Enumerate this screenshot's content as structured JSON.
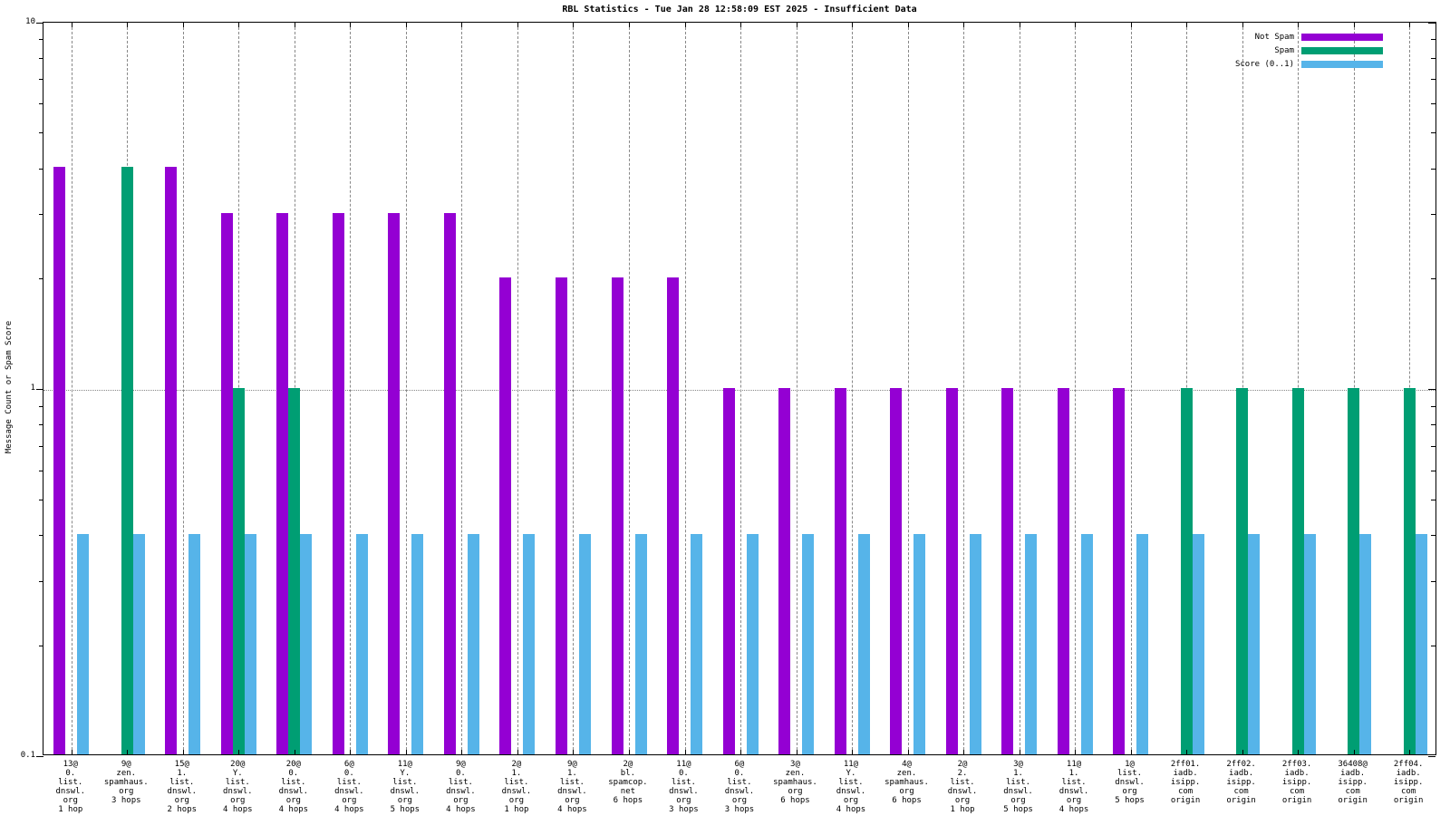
{
  "title": "RBL Statistics - Tue Jan 28 12:58:09 EST 2025 - Insufficient Data",
  "ylabel": "Message Count or Spam Score",
  "legend": [
    {
      "label": "Not Spam",
      "color": "#9400D3"
    },
    {
      "label": "Spam",
      "color": "#009E73"
    },
    {
      "label": "Score (0..1)",
      "color": "#56B4E9"
    }
  ],
  "colors": {
    "not_spam": "#9400D3",
    "spam": "#009E73",
    "score": "#56B4E9",
    "grid": "#888888",
    "border": "#000000"
  },
  "chart_data": {
    "type": "bar",
    "yscale": "log",
    "ylim": [
      0.1,
      10
    ],
    "ytick_labels": [
      "10",
      "1",
      "0.1"
    ],
    "grid": "vertical-dashed-per-category, horizontal-dotted-at-1",
    "legend_position": "top-right",
    "ylabel": "Message Count or Spam Score",
    "categories": [
      [
        "13@",
        "0.",
        "list.",
        "dnswl.",
        "org",
        "1 hop"
      ],
      [
        "9@",
        "zen.",
        "spamhaus.",
        "org",
        "3 hops"
      ],
      [
        "15@",
        "1.",
        "list.",
        "dnswl.",
        "org",
        "2 hops"
      ],
      [
        "20@",
        "Y.",
        "list.",
        "dnswl.",
        "org",
        "4 hops"
      ],
      [
        "20@",
        "0.",
        "list.",
        "dnswl.",
        "org",
        "4 hops"
      ],
      [
        "6@",
        "0.",
        "list.",
        "dnswl.",
        "org",
        "4 hops"
      ],
      [
        "11@",
        "Y.",
        "list.",
        "dnswl.",
        "org",
        "5 hops"
      ],
      [
        "9@",
        "0.",
        "list.",
        "dnswl.",
        "org",
        "4 hops"
      ],
      [
        "2@",
        "1.",
        "list.",
        "dnswl.",
        "org",
        "1 hop"
      ],
      [
        "9@",
        "1.",
        "list.",
        "dnswl.",
        "org",
        "4 hops"
      ],
      [
        "2@",
        "bl.",
        "spamcop.",
        "net",
        "6 hops"
      ],
      [
        "11@",
        "0.",
        "list.",
        "dnswl.",
        "org",
        "3 hops"
      ],
      [
        "6@",
        "0.",
        "list.",
        "dnswl.",
        "org",
        "3 hops"
      ],
      [
        "3@",
        "zen.",
        "spamhaus.",
        "org",
        "6 hops"
      ],
      [
        "11@",
        "Y.",
        "list.",
        "dnswl.",
        "org",
        "4 hops"
      ],
      [
        "4@",
        "zen.",
        "spamhaus.",
        "org",
        "6 hops"
      ],
      [
        "2@",
        "2.",
        "list.",
        "dnswl.",
        "org",
        "1 hop"
      ],
      [
        "3@",
        "1.",
        "list.",
        "dnswl.",
        "org",
        "5 hops"
      ],
      [
        "11@",
        "1.",
        "list.",
        "dnswl.",
        "org",
        "4 hops"
      ],
      [
        "1@",
        "list.",
        "dnswl.",
        "org",
        "5 hops"
      ],
      [
        "2ff01.",
        "iadb.",
        "isipp.",
        "com",
        "origin"
      ],
      [
        "2ff02.",
        "iadb.",
        "isipp.",
        "com",
        "origin"
      ],
      [
        "2ff03.",
        "iadb.",
        "isipp.",
        "com",
        "origin"
      ],
      [
        "36408@",
        "iadb.",
        "isipp.",
        "com",
        "origin"
      ],
      [
        "2ff04.",
        "iadb.",
        "isipp.",
        "com",
        "origin"
      ]
    ],
    "series": [
      {
        "name": "Not Spam",
        "color": "#9400D3",
        "values": [
          4,
          null,
          4,
          3,
          3,
          3,
          3,
          3,
          2,
          2,
          2,
          2,
          1,
          1,
          1,
          1,
          1,
          1,
          1,
          1,
          null,
          null,
          null,
          null,
          null
        ]
      },
      {
        "name": "Spam",
        "color": "#009E73",
        "values": [
          null,
          4,
          null,
          1,
          1,
          null,
          null,
          null,
          null,
          null,
          null,
          null,
          null,
          null,
          null,
          null,
          null,
          null,
          null,
          null,
          1,
          1,
          1,
          1,
          1
        ]
      },
      {
        "name": "Score (0..1)",
        "color": "#56B4E9",
        "values": [
          0.4,
          0.4,
          0.4,
          0.4,
          0.4,
          0.4,
          0.4,
          0.4,
          0.4,
          0.4,
          0.4,
          0.4,
          0.4,
          0.4,
          0.4,
          0.4,
          0.4,
          0.4,
          0.4,
          0.4,
          0.4,
          0.4,
          0.4,
          0.4,
          0.4
        ]
      }
    ]
  }
}
